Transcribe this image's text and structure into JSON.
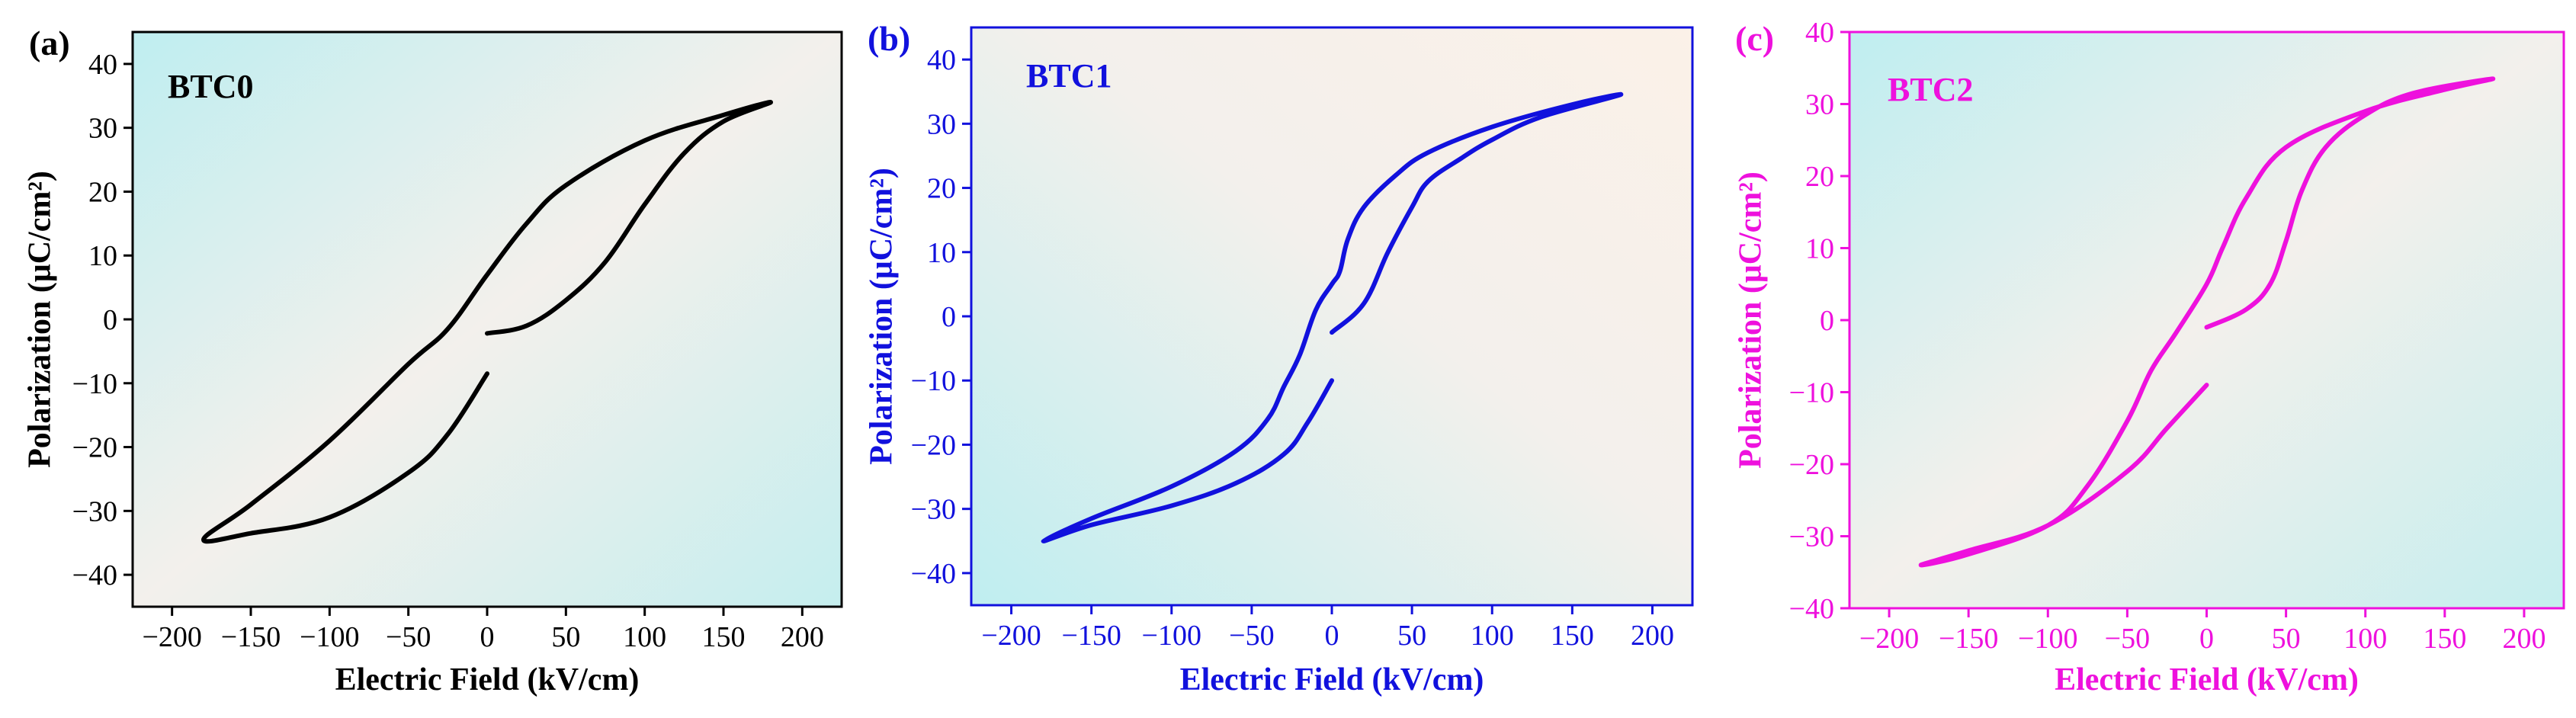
{
  "figure": {
    "panels": [
      {
        "letter": "(a)",
        "sample": "BTC0",
        "xlabel": "Electric Field (kV/cm)",
        "ylabel": "Polarization (μC/cm²)",
        "color": "#000000"
      },
      {
        "letter": "(b)",
        "sample": "BTC1",
        "xlabel": "Electric Field (kV/cm)",
        "ylabel": "Polarization (μC/cm²)",
        "color": "#1111dd"
      },
      {
        "letter": "(c)",
        "sample": "BTC2",
        "xlabel": "Electric Field (kV/cm)",
        "ylabel": "Polarization (μC/cm²)",
        "color": "#ee11dd"
      }
    ]
  },
  "chart_data": [
    {
      "type": "line",
      "title": "BTC0",
      "xlabel": "Electric Field (kV/cm)",
      "ylabel": "Polarization (μC/cm²)",
      "xlim": [
        -225,
        225
      ],
      "ylim": [
        -45,
        45
      ],
      "xticks": [
        -200,
        -150,
        -100,
        -50,
        0,
        50,
        100,
        150,
        200
      ],
      "yticks": [
        -40,
        -30,
        -20,
        -10,
        0,
        10,
        20,
        30,
        40
      ],
      "grid": false,
      "background": "gradient cyan/peach",
      "series": [
        {
          "color": "#000000",
          "x": [
            0,
            25,
            50,
            75,
            100,
            125,
            150,
            180,
            150,
            100,
            50,
            25,
            0,
            -25,
            -50,
            -100,
            -150,
            -180,
            -150,
            -100,
            -50,
            -25,
            0
          ],
          "y": [
            -2.2,
            -1,
            3,
            9,
            18,
            26,
            31,
            34,
            32,
            28,
            21,
            15,
            7,
            -1.5,
            -7,
            -19,
            -29,
            -34.5,
            -33.5,
            -31,
            -24,
            -18,
            -8.5
          ]
        }
      ]
    },
    {
      "type": "line",
      "title": "BTC1",
      "xlabel": "Electric Field (kV/cm)",
      "ylabel": "Polarization (μC/cm²)",
      "xlim": [
        -225,
        225
      ],
      "ylim": [
        -45,
        45
      ],
      "xticks": [
        -200,
        -150,
        -100,
        -50,
        0,
        50,
        100,
        150,
        200
      ],
      "yticks": [
        -40,
        -30,
        -20,
        -10,
        0,
        10,
        20,
        30,
        40
      ],
      "grid": false,
      "background": "gradient cyan/peach",
      "series": [
        {
          "color": "#1111dd",
          "x": [
            0,
            20,
            35,
            50,
            60,
            80,
            100,
            130,
            180,
            150,
            100,
            60,
            40,
            20,
            10,
            5,
            0,
            -10,
            -20,
            -30,
            -40,
            -60,
            -100,
            -150,
            -180,
            -150,
            -100,
            -60,
            -30,
            -15,
            0
          ],
          "y": [
            -2.5,
            2,
            10,
            17,
            21,
            24.5,
            27.5,
            31,
            34.5,
            33,
            29.5,
            25.5,
            22,
            17,
            12,
            7,
            5,
            1,
            -6,
            -11,
            -16,
            -21,
            -26.5,
            -31.5,
            -35,
            -32.5,
            -29.5,
            -26,
            -21.5,
            -16.5,
            -10
          ]
        }
      ]
    },
    {
      "type": "line",
      "title": "BTC2",
      "xlabel": "Electric Field (kV/cm)",
      "ylabel": "Polarization (μC/cm²)",
      "xlim": [
        -225,
        225
      ],
      "ylim": [
        -40,
        40
      ],
      "xticks": [
        -200,
        -150,
        -100,
        -50,
        0,
        50,
        100,
        150,
        200
      ],
      "yticks": [
        -40,
        -30,
        -20,
        -10,
        0,
        10,
        20,
        30,
        40
      ],
      "grid": false,
      "background": "gradient cyan/peach",
      "series": [
        {
          "color": "#ee11dd",
          "x": [
            0,
            25,
            40,
            50,
            60,
            75,
            100,
            130,
            180,
            150,
            100,
            50,
            25,
            10,
            0,
            -20,
            -35,
            -50,
            -75,
            -100,
            -150,
            -180,
            -150,
            -100,
            -50,
            -25,
            0
          ],
          "y": [
            -1,
            1.5,
            5,
            11,
            18,
            24,
            28.5,
            31.5,
            33.5,
            32,
            29,
            24,
            17,
            10,
            5,
            -2,
            -7,
            -14,
            -23,
            -28.5,
            -32.5,
            -34,
            -32,
            -28.5,
            -21,
            -15,
            -9
          ]
        }
      ]
    }
  ]
}
